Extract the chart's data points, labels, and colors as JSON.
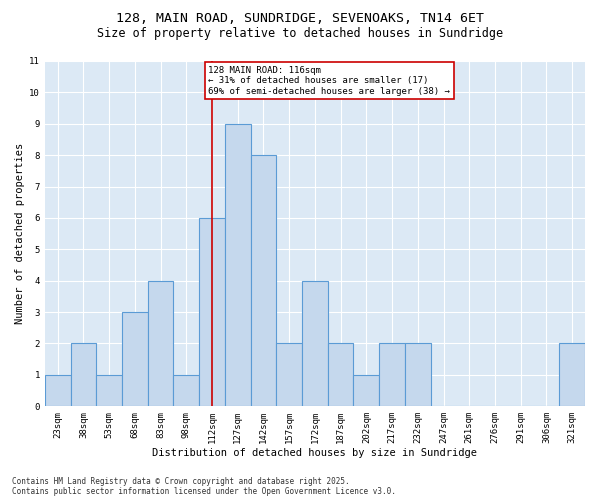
{
  "title1": "128, MAIN ROAD, SUNDRIDGE, SEVENOAKS, TN14 6ET",
  "title2": "Size of property relative to detached houses in Sundridge",
  "xlabel": "Distribution of detached houses by size in Sundridge",
  "ylabel": "Number of detached properties",
  "categories": [
    "23sqm",
    "38sqm",
    "53sqm",
    "68sqm",
    "83sqm",
    "98sqm",
    "112sqm",
    "127sqm",
    "142sqm",
    "157sqm",
    "172sqm",
    "187sqm",
    "202sqm",
    "217sqm",
    "232sqm",
    "247sqm",
    "261sqm",
    "276sqm",
    "291sqm",
    "306sqm",
    "321sqm"
  ],
  "values": [
    1,
    2,
    1,
    3,
    4,
    1,
    6,
    9,
    8,
    2,
    4,
    2,
    1,
    2,
    2,
    0,
    0,
    0,
    0,
    0,
    2
  ],
  "ylim": [
    0,
    11
  ],
  "yticks": [
    0,
    1,
    2,
    3,
    4,
    5,
    6,
    7,
    8,
    9,
    10,
    11
  ],
  "bar_color": "#c5d8ed",
  "bar_edge_color": "#5b9bd5",
  "ref_line_index": 6,
  "annotation_text": "128 MAIN ROAD: 116sqm\n← 31% of detached houses are smaller (17)\n69% of semi-detached houses are larger (38) →",
  "annotation_box_color": "#ffffff",
  "annotation_box_edge": "#cc0000",
  "ref_line_color": "#cc0000",
  "bg_color": "#dce9f5",
  "footer1": "Contains HM Land Registry data © Crown copyright and database right 2025.",
  "footer2": "Contains public sector information licensed under the Open Government Licence v3.0.",
  "title1_fontsize": 9.5,
  "title2_fontsize": 8.5,
  "xlabel_fontsize": 7.5,
  "ylabel_fontsize": 7.5,
  "tick_fontsize": 6.5,
  "annotation_fontsize": 6.5,
  "footer_fontsize": 5.5
}
